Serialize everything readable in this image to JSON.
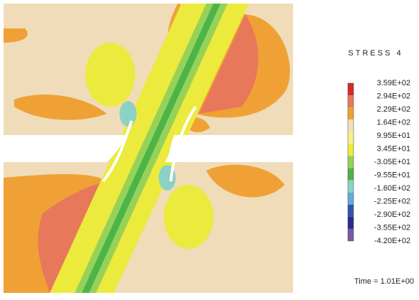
{
  "legend": {
    "title": "STRESS 4",
    "labels": [
      "3.59E+02",
      "2.94E+02",
      "2.29E+02",
      "1.64E+02",
      "9.95E+01",
      "3.45E+01",
      "-3.05E+01",
      "-9.55E+01",
      "-1.60E+02",
      "-2.25E+02",
      "-2.90E+02",
      "-3.55E+02",
      "-4.20E+02"
    ],
    "colors": [
      "#d62a24",
      "#e8785a",
      "#f0a136",
      "#f0dfb8",
      "#f5f08c",
      "#ecea3c",
      "#96d25a",
      "#4cb448",
      "#8cd2c4",
      "#64aad8",
      "#3254b4",
      "#2a2a8c",
      "#7a5aa0"
    ]
  },
  "time_label": "Time = 1.01E+00"
}
